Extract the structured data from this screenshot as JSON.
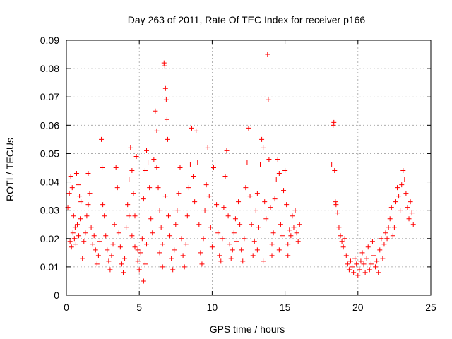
{
  "chart_data": {
    "type": "scatter",
    "title": "Day 263 of 2011, Rate Of TEC Index for receiver p166",
    "xlabel": "GPS time / hours",
    "ylabel": "ROTI / TECUs",
    "xlim": [
      0,
      25
    ],
    "ylim": [
      0,
      0.09
    ],
    "x_ticks": [
      "0",
      "5",
      "10",
      "15",
      "20",
      "25"
    ],
    "x_tick_values": [
      0,
      5,
      10,
      15,
      20,
      25
    ],
    "y_ticks": [
      "0",
      "0.01",
      "0.02",
      "0.03",
      "0.04",
      "0.05",
      "0.06",
      "0.07",
      "0.08",
      "0.09"
    ],
    "y_tick_values": [
      0,
      0.01,
      0.02,
      0.03,
      0.04,
      0.05,
      0.06,
      0.07,
      0.08,
      0.09
    ],
    "grid": true,
    "marker": "+",
    "color": "#ff0000",
    "points": [
      [
        0.1,
        0.031
      ],
      [
        0.2,
        0.036
      ],
      [
        0.3,
        0.042
      ],
      [
        0.4,
        0.038
      ],
      [
        0.5,
        0.028
      ],
      [
        0.6,
        0.024
      ],
      [
        0.7,
        0.043
      ],
      [
        0.8,
        0.039
      ],
      [
        0.9,
        0.035
      ],
      [
        0.25,
        0.019
      ],
      [
        0.35,
        0.017
      ],
      [
        0.45,
        0.022
      ],
      [
        0.55,
        0.02
      ],
      [
        0.65,
        0.018
      ],
      [
        0.75,
        0.025
      ],
      [
        0.85,
        0.021
      ],
      [
        0.95,
        0.027
      ],
      [
        1.0,
        0.033
      ],
      [
        1.1,
        0.013
      ],
      [
        1.2,
        0.019
      ],
      [
        1.3,
        0.022
      ],
      [
        1.4,
        0.028
      ],
      [
        1.5,
        0.032
      ],
      [
        1.5,
        0.043
      ],
      [
        1.6,
        0.036
      ],
      [
        1.7,
        0.024
      ],
      [
        1.8,
        0.018
      ],
      [
        1.9,
        0.021
      ],
      [
        2.0,
        0.016
      ],
      [
        2.1,
        0.011
      ],
      [
        2.2,
        0.014
      ],
      [
        2.3,
        0.019
      ],
      [
        2.4,
        0.055
      ],
      [
        2.45,
        0.045
      ],
      [
        2.5,
        0.032
      ],
      [
        2.6,
        0.028
      ],
      [
        2.7,
        0.021
      ],
      [
        2.8,
        0.016
      ],
      [
        2.9,
        0.012
      ],
      [
        3.0,
        0.009
      ],
      [
        3.1,
        0.014
      ],
      [
        3.2,
        0.018
      ],
      [
        3.3,
        0.025
      ],
      [
        3.4,
        0.045
      ],
      [
        3.5,
        0.038
      ],
      [
        3.6,
        0.022
      ],
      [
        3.7,
        0.017
      ],
      [
        3.8,
        0.011
      ],
      [
        3.9,
        0.008
      ],
      [
        4.0,
        0.013
      ],
      [
        4.1,
        0.024
      ],
      [
        4.2,
        0.032
      ],
      [
        4.3,
        0.041
      ],
      [
        4.4,
        0.052
      ],
      [
        4.5,
        0.044
      ],
      [
        4.6,
        0.036
      ],
      [
        4.7,
        0.028
      ],
      [
        4.8,
        0.049
      ],
      [
        4.9,
        0.016
      ],
      [
        4.3,
        0.028
      ],
      [
        4.5,
        0.021
      ],
      [
        4.7,
        0.017
      ],
      [
        4.9,
        0.012
      ],
      [
        5.0,
        0.009
      ],
      [
        5.1,
        0.015
      ],
      [
        5.2,
        0.02
      ],
      [
        5.3,
        0.005
      ],
      [
        5.4,
        0.011
      ],
      [
        5.5,
        0.018
      ],
      [
        5.3,
        0.034
      ],
      [
        5.4,
        0.044
      ],
      [
        5.5,
        0.051
      ],
      [
        5.6,
        0.047
      ],
      [
        5.7,
        0.038
      ],
      [
        5.8,
        0.027
      ],
      [
        5.9,
        0.022
      ],
      [
        6.0,
        0.048
      ],
      [
        6.1,
        0.065
      ],
      [
        6.2,
        0.058
      ],
      [
        6.3,
        0.038
      ],
      [
        6.4,
        0.03
      ],
      [
        6.5,
        0.024
      ],
      [
        6.6,
        0.018
      ],
      [
        6.7,
        0.082
      ],
      [
        6.75,
        0.081
      ],
      [
        6.8,
        0.073
      ],
      [
        6.85,
        0.069
      ],
      [
        6.9,
        0.062
      ],
      [
        6.95,
        0.055
      ],
      [
        6.2,
        0.045
      ],
      [
        6.4,
        0.015
      ],
      [
        6.6,
        0.01
      ],
      [
        6.8,
        0.035
      ],
      [
        7.0,
        0.028
      ],
      [
        7.1,
        0.021
      ],
      [
        7.2,
        0.013
      ],
      [
        7.3,
        0.009
      ],
      [
        7.4,
        0.016
      ],
      [
        7.5,
        0.025
      ],
      [
        7.6,
        0.03
      ],
      [
        7.7,
        0.036
      ],
      [
        7.8,
        0.045
      ],
      [
        7.9,
        0.02
      ],
      [
        8.0,
        0.014
      ],
      [
        8.1,
        0.01
      ],
      [
        8.2,
        0.018
      ],
      [
        8.3,
        0.028
      ],
      [
        8.4,
        0.038
      ],
      [
        8.5,
        0.046
      ],
      [
        8.6,
        0.059
      ],
      [
        8.7,
        0.042
      ],
      [
        8.8,
        0.033
      ],
      [
        8.9,
        0.058
      ],
      [
        9.0,
        0.047
      ],
      [
        9.1,
        0.025
      ],
      [
        9.2,
        0.015
      ],
      [
        9.3,
        0.011
      ],
      [
        9.4,
        0.02
      ],
      [
        9.5,
        0.03
      ],
      [
        9.6,
        0.039
      ],
      [
        9.7,
        0.052
      ],
      [
        9.8,
        0.035
      ],
      [
        9.9,
        0.024
      ],
      [
        10.0,
        0.017
      ],
      [
        10.1,
        0.045
      ],
      [
        10.2,
        0.046
      ],
      [
        10.3,
        0.032
      ],
      [
        10.4,
        0.022
      ],
      [
        10.5,
        0.014
      ],
      [
        10.6,
        0.012
      ],
      [
        10.7,
        0.02
      ],
      [
        10.8,
        0.031
      ],
      [
        10.9,
        0.042
      ],
      [
        11.0,
        0.051
      ],
      [
        11.1,
        0.028
      ],
      [
        11.2,
        0.018
      ],
      [
        11.3,
        0.013
      ],
      [
        11.4,
        0.016
      ],
      [
        11.5,
        0.022
      ],
      [
        11.6,
        0.027
      ],
      [
        11.7,
        0.019
      ],
      [
        11.8,
        0.033
      ],
      [
        11.9,
        0.025
      ],
      [
        12.0,
        0.016
      ],
      [
        12.1,
        0.012
      ],
      [
        12.2,
        0.02
      ],
      [
        12.3,
        0.038
      ],
      [
        12.4,
        0.047
      ],
      [
        12.5,
        0.059
      ],
      [
        12.6,
        0.035
      ],
      [
        12.7,
        0.025
      ],
      [
        12.8,
        0.014
      ],
      [
        12.9,
        0.019
      ],
      [
        13.0,
        0.03
      ],
      [
        13.1,
        0.036
      ],
      [
        13.2,
        0.024
      ],
      [
        13.3,
        0.046
      ],
      [
        13.4,
        0.055
      ],
      [
        13.5,
        0.052
      ],
      [
        13.6,
        0.033
      ],
      [
        13.7,
        0.027
      ],
      [
        13.8,
        0.085
      ],
      [
        13.85,
        0.069
      ],
      [
        13.9,
        0.048
      ],
      [
        14.0,
        0.031
      ],
      [
        14.1,
        0.018
      ],
      [
        14.2,
        0.022
      ],
      [
        14.3,
        0.034
      ],
      [
        14.4,
        0.041
      ],
      [
        14.5,
        0.048
      ],
      [
        14.6,
        0.043
      ],
      [
        14.7,
        0.025
      ],
      [
        14.8,
        0.021
      ],
      [
        14.9,
        0.037
      ],
      [
        15.0,
        0.044
      ],
      [
        15.1,
        0.032
      ],
      [
        15.2,
        0.018
      ],
      [
        15.3,
        0.023
      ],
      [
        15.4,
        0.021
      ],
      [
        15.5,
        0.028
      ],
      [
        15.6,
        0.024
      ],
      [
        15.7,
        0.03
      ],
      [
        15.8,
        0.022
      ],
      [
        15.9,
        0.019
      ],
      [
        16.0,
        0.025
      ],
      [
        13.1,
        0.016
      ],
      [
        13.5,
        0.012
      ],
      [
        14.1,
        0.014
      ],
      [
        14.6,
        0.016
      ],
      [
        15.2,
        0.014
      ],
      [
        18.2,
        0.046
      ],
      [
        18.3,
        0.06
      ],
      [
        18.35,
        0.061
      ],
      [
        18.4,
        0.044
      ],
      [
        18.45,
        0.033
      ],
      [
        18.5,
        0.032
      ],
      [
        18.6,
        0.029
      ],
      [
        18.7,
        0.024
      ],
      [
        18.8,
        0.021
      ],
      [
        18.9,
        0.019
      ],
      [
        19.0,
        0.017
      ],
      [
        19.1,
        0.02
      ],
      [
        19.2,
        0.014
      ],
      [
        19.3,
        0.011
      ],
      [
        19.4,
        0.009
      ],
      [
        19.5,
        0.012
      ],
      [
        19.6,
        0.01
      ],
      [
        19.7,
        0.008
      ],
      [
        19.8,
        0.013
      ],
      [
        19.9,
        0.011
      ],
      [
        20.0,
        0.007
      ],
      [
        20.1,
        0.009
      ],
      [
        20.2,
        0.012
      ],
      [
        20.3,
        0.015
      ],
      [
        20.4,
        0.011
      ],
      [
        20.5,
        0.008
      ],
      [
        20.6,
        0.013
      ],
      [
        20.7,
        0.017
      ],
      [
        20.8,
        0.009
      ],
      [
        20.9,
        0.011
      ],
      [
        21.0,
        0.019
      ],
      [
        21.1,
        0.014
      ],
      [
        21.2,
        0.01
      ],
      [
        21.3,
        0.012
      ],
      [
        21.4,
        0.008
      ],
      [
        21.5,
        0.016
      ],
      [
        21.6,
        0.02
      ],
      [
        21.7,
        0.013
      ],
      [
        21.8,
        0.018
      ],
      [
        21.9,
        0.022
      ],
      [
        22.0,
        0.02
      ],
      [
        22.1,
        0.024
      ],
      [
        22.2,
        0.027
      ],
      [
        22.3,
        0.031
      ],
      [
        22.4,
        0.021
      ],
      [
        22.5,
        0.024
      ],
      [
        22.6,
        0.033
      ],
      [
        22.7,
        0.038
      ],
      [
        22.8,
        0.035
      ],
      [
        22.9,
        0.03
      ],
      [
        23.0,
        0.039
      ],
      [
        23.1,
        0.044
      ],
      [
        23.2,
        0.041
      ],
      [
        23.3,
        0.036
      ],
      [
        23.4,
        0.031
      ],
      [
        23.5,
        0.027
      ],
      [
        23.6,
        0.033
      ],
      [
        23.7,
        0.029
      ],
      [
        23.8,
        0.025
      ]
    ]
  }
}
